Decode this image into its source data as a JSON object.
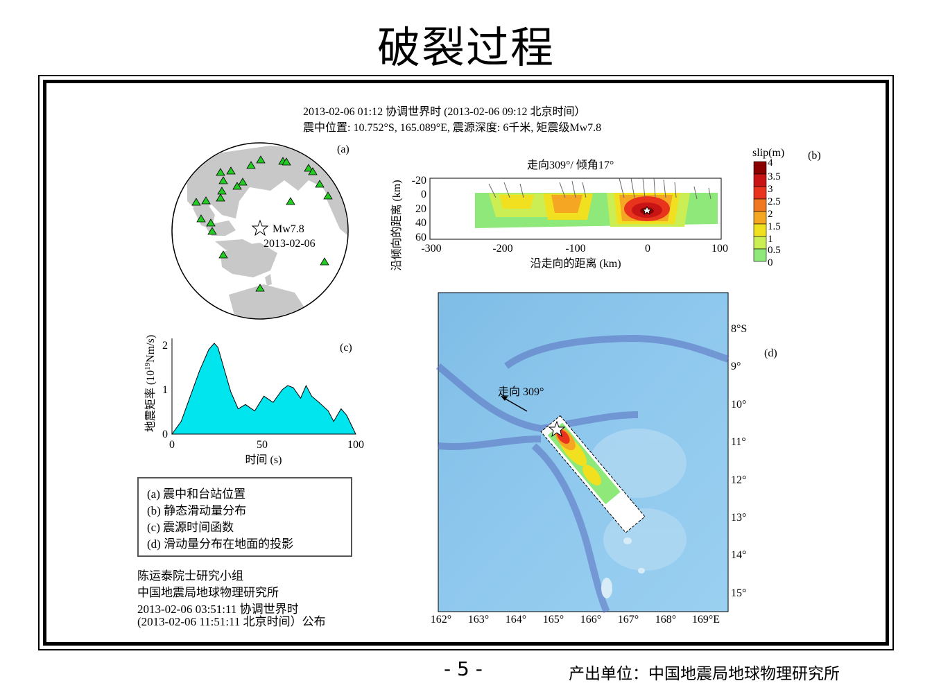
{
  "slide": {
    "title": "破裂过程",
    "page_number": "- 5 -",
    "producer": "产出单位：中国地震局地球物理研究所"
  },
  "header": {
    "line1": "2013-02-06 01:12 协调世界时  (2013-02-06 09:12 北京时间）",
    "line2": "震中位置: 10.752°S, 165.089°E, 震源深度: 6千米, 矩震级Mw7.8"
  },
  "panel_a": {
    "label": "(a)",
    "magnitude": "Mw7.8",
    "date": "2013-02-06"
  },
  "panel_b": {
    "label": "(b)",
    "title": "走向309°/ 倾角17°",
    "ylabel": "沿倾向的距离 (km)",
    "xlabel": "沿走向的距离 (km)",
    "yticks": [
      "-20",
      "0",
      "20",
      "40",
      "60"
    ],
    "xticks": [
      "-300",
      "-200",
      "-100",
      "0",
      "100"
    ],
    "colorbar_title": "slip(m)",
    "colorbar_ticks": [
      "4",
      "3.5",
      "3",
      "2.5",
      "2",
      "1.5",
      "1",
      "0.5",
      "0"
    ],
    "colorbar_colors": [
      "#8b0000",
      "#c81414",
      "#e8341c",
      "#f07820",
      "#f5a623",
      "#f0e020",
      "#ccee55",
      "#8ee87a",
      "#ffffff"
    ]
  },
  "panel_c": {
    "label": "(c)",
    "ylabel_main": "地震矩率 (10",
    "ylabel_exp": "19",
    "ylabel_unit": "Nm/s)",
    "xlabel": "时间 (s)",
    "xticks": [
      "0",
      "50",
      "100"
    ],
    "yticks": [
      "0",
      "1",
      "2"
    ],
    "fill_color": "#00e5ee"
  },
  "chart_data": {
    "type": "area",
    "x": [
      0,
      5,
      10,
      15,
      20,
      23,
      25,
      28,
      32,
      36,
      40,
      45,
      50,
      55,
      60,
      63,
      66,
      70,
      73,
      76,
      80,
      85,
      88,
      92,
      95,
      100
    ],
    "y": [
      0,
      0.3,
      0.9,
      1.5,
      2.0,
      2.15,
      2.05,
      1.6,
      1.0,
      0.6,
      0.7,
      0.55,
      0.9,
      0.75,
      1.05,
      1.15,
      1.1,
      0.85,
      1.15,
      0.9,
      0.75,
      0.55,
      0.3,
      0.6,
      0.45,
      0
    ],
    "xlim": [
      0,
      100
    ],
    "ylim": [
      0,
      2.2
    ],
    "xlabel": "时间 (s)"
  },
  "panel_d": {
    "label": "(d)",
    "strike_label": "走向 309°",
    "lat_ticks": [
      "8°S",
      "9°",
      "10°",
      "11°",
      "12°",
      "13°",
      "14°",
      "15°"
    ],
    "lon_ticks": [
      "162°",
      "163°",
      "164°",
      "165°",
      "166°",
      "167°",
      "168°",
      "169°E"
    ]
  },
  "legend": {
    "items": [
      "(a) 震中和台站位置",
      "(b) 静态滑动量分布",
      "(c) 震源时间函数",
      "(d) 滑动量分布在地面的投影"
    ]
  },
  "credits": {
    "line1": "陈运泰院士研究小组",
    "line2": "中国地震局地球物理研究所",
    "line3": "2013-02-06 03:51:11 协调世界时",
    "line4": "(2013-02-06 11:51:11 北京时间）公布"
  }
}
